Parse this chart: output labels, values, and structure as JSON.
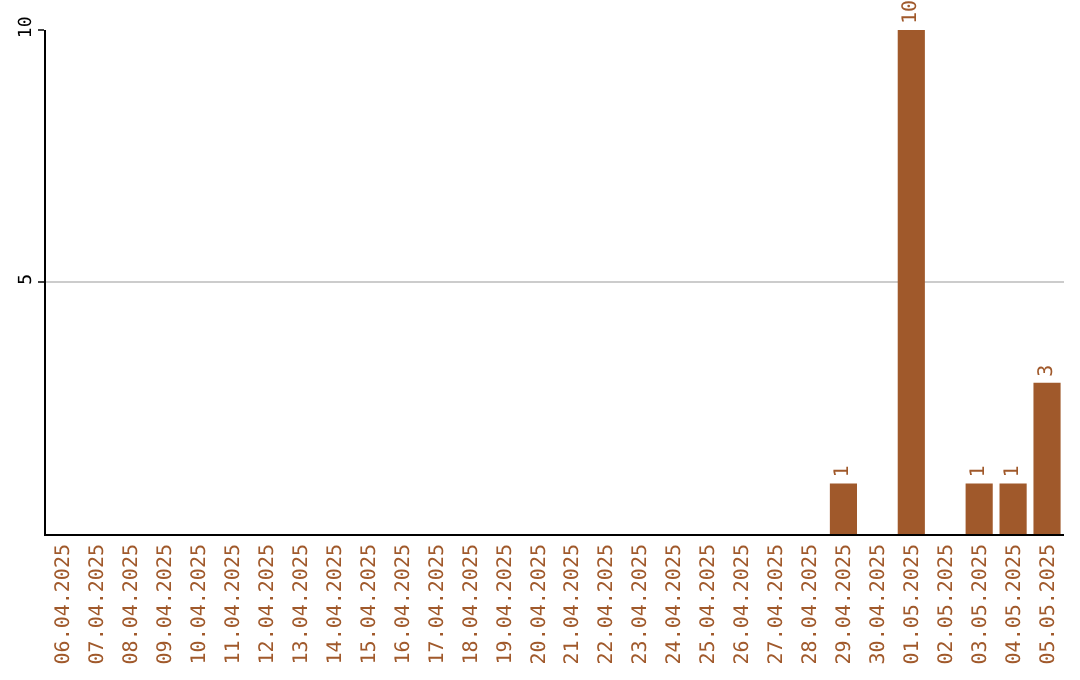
{
  "chart_data": {
    "type": "bar",
    "categories": [
      "06.04.2025",
      "07.04.2025",
      "08.04.2025",
      "09.04.2025",
      "10.04.2025",
      "11.04.2025",
      "12.04.2025",
      "13.04.2025",
      "14.04.2025",
      "15.04.2025",
      "16.04.2025",
      "17.04.2025",
      "18.04.2025",
      "19.04.2025",
      "20.04.2025",
      "21.04.2025",
      "22.04.2025",
      "23.04.2025",
      "24.04.2025",
      "25.04.2025",
      "26.04.2025",
      "27.04.2025",
      "28.04.2025",
      "29.04.2025",
      "30.04.2025",
      "01.05.2025",
      "02.05.2025",
      "03.05.2025",
      "04.05.2025",
      "05.05.2025"
    ],
    "values": [
      0,
      0,
      0,
      0,
      0,
      0,
      0,
      0,
      0,
      0,
      0,
      0,
      0,
      0,
      0,
      0,
      0,
      0,
      0,
      0,
      0,
      0,
      0,
      1,
      0,
      10,
      0,
      1,
      1,
      3
    ],
    "value_labels": [
      null,
      null,
      null,
      null,
      null,
      null,
      null,
      null,
      null,
      null,
      null,
      null,
      null,
      null,
      null,
      null,
      null,
      null,
      null,
      null,
      null,
      null,
      null,
      "1",
      null,
      "10",
      null,
      "1",
      "1",
      "3"
    ],
    "color": "#a0592b",
    "ylim": [
      0,
      10
    ],
    "yticks": [
      5,
      10
    ],
    "grid": "y",
    "legend": false
  }
}
